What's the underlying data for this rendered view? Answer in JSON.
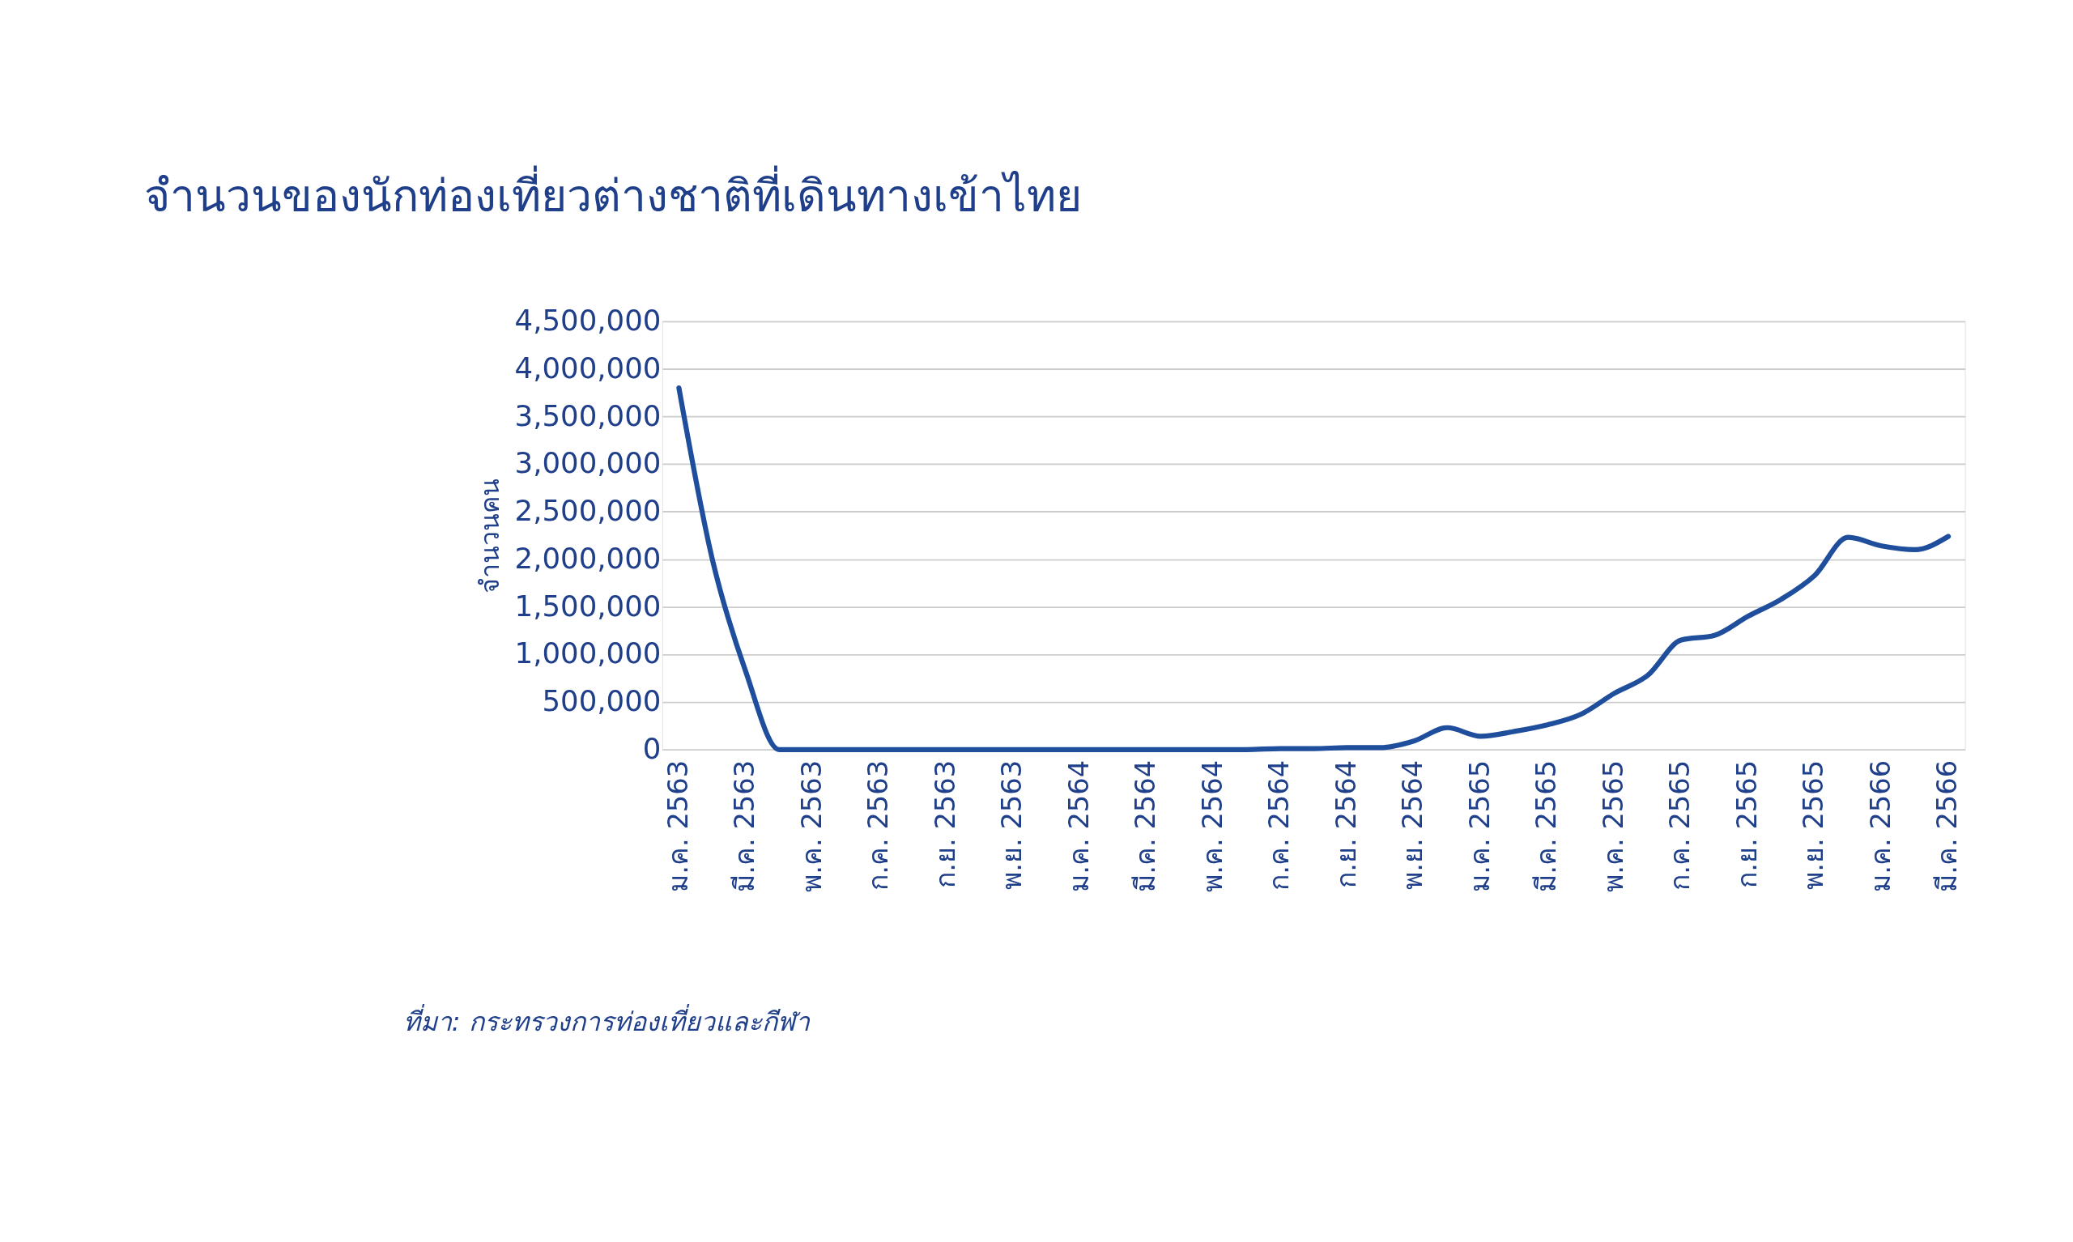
{
  "chart_data": {
    "type": "line",
    "title": "จำนวนของนักท่องเที่ยวต่างชาติที่เดินทางเข้าไทย",
    "ylabel": "จำนวนคน",
    "categories": [
      "ม.ค. 2563",
      null,
      "มี.ค. 2563",
      null,
      "พ.ค. 2563",
      null,
      "ก.ค. 2563",
      null,
      "ก.ย. 2563",
      null,
      "พ.ย. 2563",
      null,
      "ม.ค. 2564",
      null,
      "มี.ค. 2564",
      null,
      "พ.ค. 2564",
      null,
      "ก.ค. 2564",
      null,
      "ก.ย. 2564",
      null,
      "พ.ย. 2564",
      null,
      "ม.ค. 2565",
      null,
      "มี.ค. 2565",
      null,
      "พ.ค. 2565",
      null,
      "ก.ค. 2565",
      null,
      "ก.ย. 2565",
      null,
      "พ.ย. 2565",
      null,
      "ม.ค. 2566",
      null,
      "มี.ค. 2566"
    ],
    "series": [
      {
        "color": "#1f4e9c",
        "values": [
          3800000,
          2000000,
          820000,
          0,
          0,
          0,
          0,
          0,
          0,
          0,
          0,
          0,
          0,
          0,
          0,
          0,
          0,
          0,
          10000,
          10000,
          20000,
          20000,
          90000,
          230000,
          140000,
          190000,
          260000,
          370000,
          590000,
          780000,
          1150000,
          1200000,
          1400000,
          1580000,
          1830000,
          2230000,
          2140000,
          2100000,
          2240000
        ]
      }
    ],
    "ylim": [
      0,
      4500000
    ],
    "yticks": [
      {
        "value": 0,
        "label": "0"
      },
      {
        "value": 500000,
        "label": "500,000"
      },
      {
        "value": 1000000,
        "label": "1,000,000"
      },
      {
        "value": 1500000,
        "label": "1,500,000"
      },
      {
        "value": 2000000,
        "label": "2,000,000"
      },
      {
        "value": 2500000,
        "label": "2,500,000"
      },
      {
        "value": 3000000,
        "label": "3,000,000"
      },
      {
        "value": 3500000,
        "label": "3,500,000"
      },
      {
        "value": 4000000,
        "label": "4,000,000"
      },
      {
        "value": 4500000,
        "label": "4,500,000"
      }
    ],
    "grid": "y",
    "marker": "none",
    "line_style": "solid",
    "annotations": [
      "ที่มา: กระทรวงการท่องเที่ยวและกีฬา"
    ]
  }
}
